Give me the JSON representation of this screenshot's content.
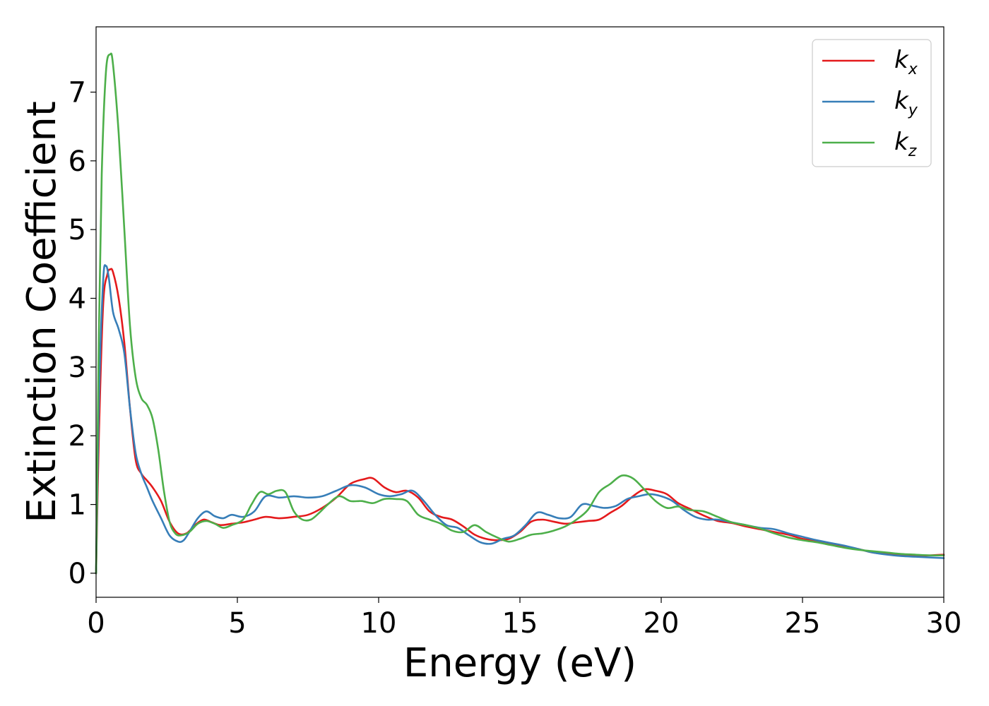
{
  "chart_data": {
    "type": "line",
    "xlabel": "Energy (eV)",
    "ylabel": "Extinction Coefficient",
    "xlim": [
      0,
      30
    ],
    "ylim": [
      -0.35,
      7.95
    ],
    "xticks": [
      "0",
      "5",
      "10",
      "15",
      "20",
      "25",
      "30"
    ],
    "yticks": [
      "0",
      "1",
      "2",
      "3",
      "4",
      "5",
      "6",
      "7"
    ],
    "grid": false,
    "legend_position": "top-right",
    "series": [
      {
        "name": "k_x",
        "label_main": "k",
        "label_sub": "x",
        "color": "#e41a1c",
        "x": [
          0,
          0.1,
          0.25,
          0.4,
          0.5,
          0.6,
          0.8,
          1.0,
          1.2,
          1.4,
          1.6,
          1.8,
          2.0,
          2.3,
          2.6,
          2.9,
          3.2,
          3.5,
          3.8,
          4.1,
          4.4,
          4.8,
          5.2,
          5.6,
          6.0,
          6.5,
          7.0,
          7.5,
          8.0,
          8.5,
          9.0,
          9.5,
          9.8,
          10.2,
          10.6,
          11.0,
          11.4,
          11.8,
          12.2,
          12.6,
          13.0,
          13.4,
          13.8,
          14.2,
          14.6,
          15.0,
          15.4,
          15.8,
          16.2,
          16.6,
          17.0,
          17.4,
          17.8,
          18.2,
          18.6,
          19.0,
          19.4,
          19.8,
          20.2,
          20.6,
          21.0,
          21.5,
          22.0,
          22.5,
          23.0,
          23.5,
          24.0,
          24.5,
          25.0,
          25.5,
          26.0,
          26.5,
          27.0,
          27.5,
          28.0,
          28.5,
          29.0,
          29.5,
          30.0
        ],
        "y": [
          0.0,
          2.0,
          3.9,
          4.35,
          4.42,
          4.38,
          4.0,
          3.35,
          2.4,
          1.65,
          1.45,
          1.35,
          1.25,
          1.05,
          0.75,
          0.58,
          0.58,
          0.7,
          0.78,
          0.74,
          0.7,
          0.72,
          0.74,
          0.78,
          0.82,
          0.8,
          0.82,
          0.85,
          0.95,
          1.1,
          1.3,
          1.37,
          1.38,
          1.25,
          1.18,
          1.2,
          1.1,
          0.9,
          0.82,
          0.78,
          0.68,
          0.56,
          0.5,
          0.48,
          0.5,
          0.6,
          0.75,
          0.78,
          0.75,
          0.72,
          0.74,
          0.76,
          0.78,
          0.88,
          0.98,
          1.12,
          1.22,
          1.2,
          1.15,
          1.02,
          0.94,
          0.84,
          0.76,
          0.73,
          0.68,
          0.64,
          0.6,
          0.56,
          0.5,
          0.47,
          0.42,
          0.39,
          0.35,
          0.3,
          0.28,
          0.26,
          0.26,
          0.26,
          0.27
        ]
      },
      {
        "name": "k_y",
        "label_main": "k",
        "label_sub": "y",
        "color": "#377eb8",
        "x": [
          0,
          0.1,
          0.25,
          0.35,
          0.45,
          0.6,
          0.8,
          1.0,
          1.2,
          1.4,
          1.6,
          1.8,
          2.0,
          2.3,
          2.6,
          2.9,
          3.1,
          3.3,
          3.6,
          3.9,
          4.2,
          4.5,
          4.8,
          5.2,
          5.6,
          6.0,
          6.5,
          7.0,
          7.5,
          8.0,
          8.5,
          9.0,
          9.5,
          10.0,
          10.4,
          10.8,
          11.2,
          11.6,
          12.0,
          12.4,
          12.8,
          13.2,
          13.6,
          14.0,
          14.4,
          14.8,
          15.2,
          15.6,
          16.0,
          16.4,
          16.8,
          17.2,
          17.6,
          18.0,
          18.4,
          18.8,
          19.2,
          19.6,
          20.0,
          20.4,
          20.8,
          21.2,
          21.6,
          22.0,
          22.5,
          23.0,
          23.5,
          24.0,
          24.5,
          25.0,
          25.5,
          26.0,
          26.5,
          27.0,
          27.5,
          28.0,
          28.5,
          29.0,
          29.5,
          30.0
        ],
        "y": [
          0.0,
          2.5,
          4.25,
          4.47,
          4.3,
          3.8,
          3.55,
          3.2,
          2.4,
          1.75,
          1.45,
          1.25,
          1.05,
          0.8,
          0.55,
          0.46,
          0.48,
          0.6,
          0.8,
          0.9,
          0.83,
          0.8,
          0.85,
          0.82,
          0.9,
          1.12,
          1.1,
          1.12,
          1.1,
          1.12,
          1.2,
          1.28,
          1.25,
          1.15,
          1.12,
          1.15,
          1.2,
          1.05,
          0.85,
          0.7,
          0.66,
          0.55,
          0.45,
          0.43,
          0.5,
          0.55,
          0.7,
          0.88,
          0.85,
          0.8,
          0.82,
          1.0,
          0.98,
          0.95,
          0.98,
          1.08,
          1.12,
          1.15,
          1.12,
          1.05,
          0.92,
          0.82,
          0.78,
          0.78,
          0.74,
          0.7,
          0.66,
          0.64,
          0.58,
          0.53,
          0.48,
          0.44,
          0.4,
          0.35,
          0.3,
          0.27,
          0.25,
          0.24,
          0.23,
          0.22
        ]
      },
      {
        "name": "k_z",
        "label_main": "k",
        "label_sub": "z",
        "color": "#4daf4a",
        "x": [
          0,
          0.1,
          0.2,
          0.35,
          0.5,
          0.6,
          0.8,
          1.0,
          1.2,
          1.4,
          1.6,
          1.8,
          2.0,
          2.2,
          2.4,
          2.6,
          2.8,
          3.0,
          3.3,
          3.6,
          3.9,
          4.2,
          4.5,
          4.8,
          5.2,
          5.5,
          5.8,
          6.1,
          6.4,
          6.7,
          7.0,
          7.3,
          7.6,
          7.9,
          8.2,
          8.6,
          9.0,
          9.4,
          9.8,
          10.2,
          10.6,
          11.0,
          11.4,
          11.8,
          12.2,
          12.6,
          13.0,
          13.4,
          13.8,
          14.2,
          14.6,
          15.0,
          15.4,
          15.8,
          16.2,
          16.6,
          17.0,
          17.4,
          17.8,
          18.2,
          18.6,
          19.0,
          19.4,
          19.8,
          20.2,
          20.6,
          21.0,
          21.5,
          22.0,
          22.5,
          23.0,
          23.5,
          24.0,
          24.5,
          25.0,
          25.5,
          26.0,
          26.5,
          27.0,
          27.5,
          28.0,
          28.5,
          29.0,
          29.5,
          30.0
        ],
        "y": [
          0.0,
          3.5,
          5.8,
          7.3,
          7.55,
          7.4,
          6.4,
          5.0,
          3.6,
          2.85,
          2.55,
          2.45,
          2.25,
          1.8,
          1.2,
          0.75,
          0.58,
          0.55,
          0.6,
          0.72,
          0.76,
          0.72,
          0.66,
          0.7,
          0.78,
          1.0,
          1.18,
          1.15,
          1.2,
          1.18,
          0.9,
          0.78,
          0.78,
          0.88,
          1.0,
          1.12,
          1.05,
          1.05,
          1.02,
          1.08,
          1.08,
          1.05,
          0.85,
          0.78,
          0.72,
          0.62,
          0.6,
          0.7,
          0.6,
          0.52,
          0.46,
          0.5,
          0.56,
          0.58,
          0.62,
          0.68,
          0.78,
          0.92,
          1.18,
          1.3,
          1.42,
          1.38,
          1.22,
          1.05,
          0.95,
          0.97,
          0.92,
          0.9,
          0.82,
          0.74,
          0.7,
          0.65,
          0.58,
          0.52,
          0.48,
          0.45,
          0.41,
          0.37,
          0.34,
          0.32,
          0.3,
          0.28,
          0.27,
          0.26,
          0.26
        ]
      }
    ]
  }
}
